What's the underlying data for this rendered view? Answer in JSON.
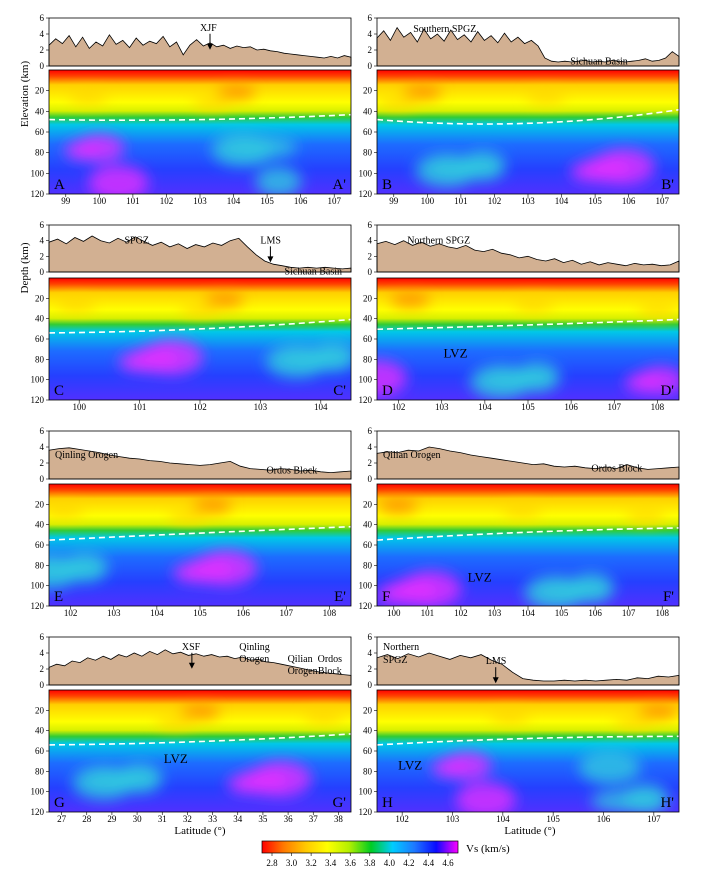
{
  "figure": {
    "elevation_axis_label": "Elevation (km)",
    "depth_axis_label": "Depth (km)",
    "latitude_axis_label": "Latitude (°)",
    "colorbar": {
      "label": "Vs (km/s)",
      "ticks": [
        "2.8",
        "3.0",
        "3.2",
        "3.4",
        "3.6",
        "3.8",
        "4.0",
        "4.2",
        "4.4",
        "4.6"
      ],
      "colors": [
        "#ff0000",
        "#ff7a00",
        "#ffc800",
        "#ffff00",
        "#b4f000",
        "#00cc22",
        "#00ccff",
        "#1e78ff",
        "#0a0aff",
        "#ff00ff"
      ]
    }
  },
  "panels": [
    {
      "id": "A",
      "start": "A",
      "end": "A'",
      "elev_ticks": [
        "0",
        "2",
        "4",
        "6"
      ],
      "depth_ticks": [
        "20",
        "40",
        "60",
        "80",
        "100",
        "120"
      ],
      "x_ticks": [
        "99",
        "100",
        "101",
        "102",
        "103",
        "104",
        "105",
        "106",
        "107"
      ],
      "labels": [
        {
          "text": "XJF"
        }
      ],
      "lvz": "",
      "elevation": [
        2.6,
        3.4,
        2.8,
        3.8,
        2.4,
        3.6,
        2.2,
        3.0,
        2.5,
        3.9,
        2.7,
        3.2,
        2.3,
        3.5,
        2.6,
        3.1,
        2.8,
        3.7,
        2.4,
        3.0,
        1.4,
        2.6,
        3.3,
        2.5,
        2.9,
        2.4,
        2.6,
        2.2,
        2.5,
        2.3,
        2.4,
        2.0,
        2.1,
        1.9,
        1.8,
        1.6,
        1.5,
        1.4,
        1.3,
        1.2,
        1.1,
        1.0,
        1.2,
        1.0,
        1.3,
        1.1
      ]
    },
    {
      "id": "B",
      "start": "B",
      "end": "B'",
      "elev_ticks": [
        "0",
        "2",
        "4",
        "6"
      ],
      "depth_ticks": [
        "20",
        "40",
        "60",
        "80",
        "100",
        "120"
      ],
      "x_ticks": [
        "99",
        "100",
        "101",
        "102",
        "103",
        "104",
        "105",
        "106",
        "107"
      ],
      "labels": [
        {
          "text": "Southern SPGZ"
        },
        {
          "text": "Sichuan Basin"
        }
      ],
      "lvz": "",
      "elevation": [
        3.5,
        4.4,
        3.2,
        4.8,
        3.6,
        4.2,
        3.0,
        4.6,
        3.4,
        4.0,
        3.1,
        4.5,
        3.3,
        3.9,
        3.0,
        4.3,
        3.2,
        3.8,
        2.9,
        4.1,
        3.0,
        3.6,
        2.8,
        3.2,
        2.5,
        1.0,
        0.6,
        0.5,
        0.6,
        0.5,
        0.6,
        0.7,
        0.5,
        0.6,
        0.5,
        0.7,
        0.6,
        0.5,
        0.6,
        0.7,
        0.9,
        0.6,
        0.7,
        1.0,
        1.8,
        1.2
      ]
    },
    {
      "id": "C",
      "start": "C",
      "end": "C'",
      "elev_ticks": [
        "0",
        "2",
        "4",
        "6"
      ],
      "depth_ticks": [
        "20",
        "40",
        "60",
        "80",
        "100",
        "120"
      ],
      "x_ticks": [
        "100",
        "101",
        "102",
        "103",
        "104"
      ],
      "labels": [
        {
          "text": "SPGZ"
        },
        {
          "text": "LMS"
        },
        {
          "text": "Sichuan Basin"
        }
      ],
      "lvz": "",
      "elevation": [
        3.8,
        4.2,
        3.6,
        4.4,
        3.9,
        4.6,
        4.0,
        3.7,
        4.3,
        3.8,
        4.5,
        3.9,
        3.4,
        3.8,
        3.2,
        3.6,
        3.0,
        3.5,
        3.2,
        3.7,
        3.4,
        4.0,
        4.3,
        3.2,
        2.2,
        1.4,
        1.0,
        0.8,
        0.6,
        0.5,
        0.6,
        0.5,
        0.6,
        0.5,
        0.4,
        0.5
      ]
    },
    {
      "id": "D",
      "start": "D",
      "end": "D'",
      "elev_ticks": [
        "0",
        "2",
        "4",
        "6"
      ],
      "depth_ticks": [
        "20",
        "40",
        "60",
        "80",
        "100",
        "120"
      ],
      "x_ticks": [
        "102",
        "103",
        "104",
        "105",
        "106",
        "107",
        "108"
      ],
      "labels": [
        {
          "text": "Northern SPGZ"
        }
      ],
      "lvz": "LVZ",
      "elevation": [
        3.6,
        3.9,
        3.5,
        4.0,
        3.4,
        3.8,
        3.3,
        3.6,
        3.2,
        3.0,
        3.4,
        2.8,
        2.6,
        2.9,
        2.4,
        2.2,
        1.8,
        2.0,
        1.6,
        1.4,
        1.7,
        1.2,
        1.5,
        1.0,
        1.3,
        0.9,
        1.2,
        1.0,
        0.8,
        1.1,
        0.9,
        1.0,
        0.8,
        0.9,
        1.4
      ]
    },
    {
      "id": "E",
      "start": "E",
      "end": "E'",
      "elev_ticks": [
        "0",
        "2",
        "4",
        "6"
      ],
      "depth_ticks": [
        "20",
        "40",
        "60",
        "80",
        "100",
        "120"
      ],
      "x_ticks": [
        "102",
        "103",
        "104",
        "105",
        "106",
        "107",
        "108"
      ],
      "labels": [
        {
          "text": "Qinling Orogen"
        },
        {
          "text": "Ordos Block"
        }
      ],
      "lvz": "",
      "elevation": [
        3.6,
        3.8,
        3.9,
        3.7,
        3.5,
        3.3,
        3.0,
        2.8,
        2.6,
        2.5,
        2.3,
        2.2,
        2.0,
        1.9,
        1.8,
        1.7,
        1.8,
        2.0,
        2.2,
        1.6,
        1.3,
        1.2,
        1.1,
        1.3,
        1.2,
        1.0,
        1.1,
        0.9,
        0.8,
        0.9,
        1.0
      ]
    },
    {
      "id": "F",
      "start": "F",
      "end": "F'",
      "elev_ticks": [
        "0",
        "2",
        "4",
        "6"
      ],
      "depth_ticks": [
        "20",
        "40",
        "60",
        "80",
        "100",
        "120"
      ],
      "x_ticks": [
        "100",
        "101",
        "102",
        "103",
        "104",
        "105",
        "106",
        "107",
        "108"
      ],
      "labels": [
        {
          "text": "Qilian Orogen"
        },
        {
          "text": "Ordos Block"
        }
      ],
      "lvz": "LVZ",
      "elevation": [
        3.2,
        3.4,
        3.3,
        3.6,
        3.5,
        4.0,
        3.8,
        3.5,
        3.3,
        3.0,
        2.8,
        2.6,
        2.4,
        2.2,
        2.0,
        1.8,
        1.9,
        1.6,
        1.5,
        1.6,
        1.4,
        1.3,
        1.5,
        1.3,
        1.8,
        1.4,
        1.2,
        1.3,
        1.4,
        1.5
      ]
    },
    {
      "id": "G",
      "start": "G",
      "end": "G'",
      "elev_ticks": [
        "0",
        "2",
        "4",
        "6"
      ],
      "depth_ticks": [
        "20",
        "40",
        "60",
        "80",
        "100",
        "120"
      ],
      "x_ticks": [
        "27",
        "28",
        "29",
        "30",
        "31",
        "32",
        "33",
        "34",
        "35",
        "36",
        "37",
        "38"
      ],
      "labels": [
        {
          "text": "XSF"
        },
        {
          "text": "Qinling"
        },
        {
          "text": "Orogen"
        },
        {
          "text": "Qilian"
        },
        {
          "text": "Orogen"
        },
        {
          "text": "Ordos"
        },
        {
          "text": "Block"
        }
      ],
      "lvz": "LVZ",
      "elevation": [
        2.2,
        2.6,
        2.4,
        3.0,
        2.8,
        3.4,
        3.1,
        3.6,
        3.2,
        3.8,
        3.5,
        4.0,
        3.6,
        4.2,
        3.8,
        4.4,
        3.9,
        4.1,
        3.7,
        3.9,
        3.6,
        3.8,
        3.5,
        3.6,
        3.3,
        3.5,
        3.1,
        3.2,
        2.9,
        2.8,
        2.6,
        2.4,
        2.2,
        2.0,
        1.8,
        1.6,
        1.5,
        1.4,
        1.3,
        1.2
      ]
    },
    {
      "id": "H",
      "start": "H",
      "end": "H'",
      "elev_ticks": [
        "0",
        "2",
        "4",
        "6"
      ],
      "depth_ticks": [
        "20",
        "40",
        "60",
        "80",
        "100",
        "120"
      ],
      "x_ticks": [
        "102",
        "103",
        "104",
        "105",
        "106",
        "107"
      ],
      "labels": [
        {
          "text": "Northern"
        },
        {
          "text": "SPGZ"
        },
        {
          "text": "LMS"
        }
      ],
      "lvz": "LVZ",
      "elevation": [
        3.4,
        3.8,
        3.3,
        3.9,
        3.5,
        4.0,
        3.6,
        3.2,
        3.7,
        3.4,
        3.8,
        3.1,
        2.6,
        1.6,
        0.8,
        0.6,
        0.5,
        0.5,
        0.6,
        0.5,
        0.6,
        0.5,
        0.6,
        0.7,
        0.6,
        0.9,
        0.8,
        1.1,
        1.0,
        1.2
      ]
    }
  ]
}
